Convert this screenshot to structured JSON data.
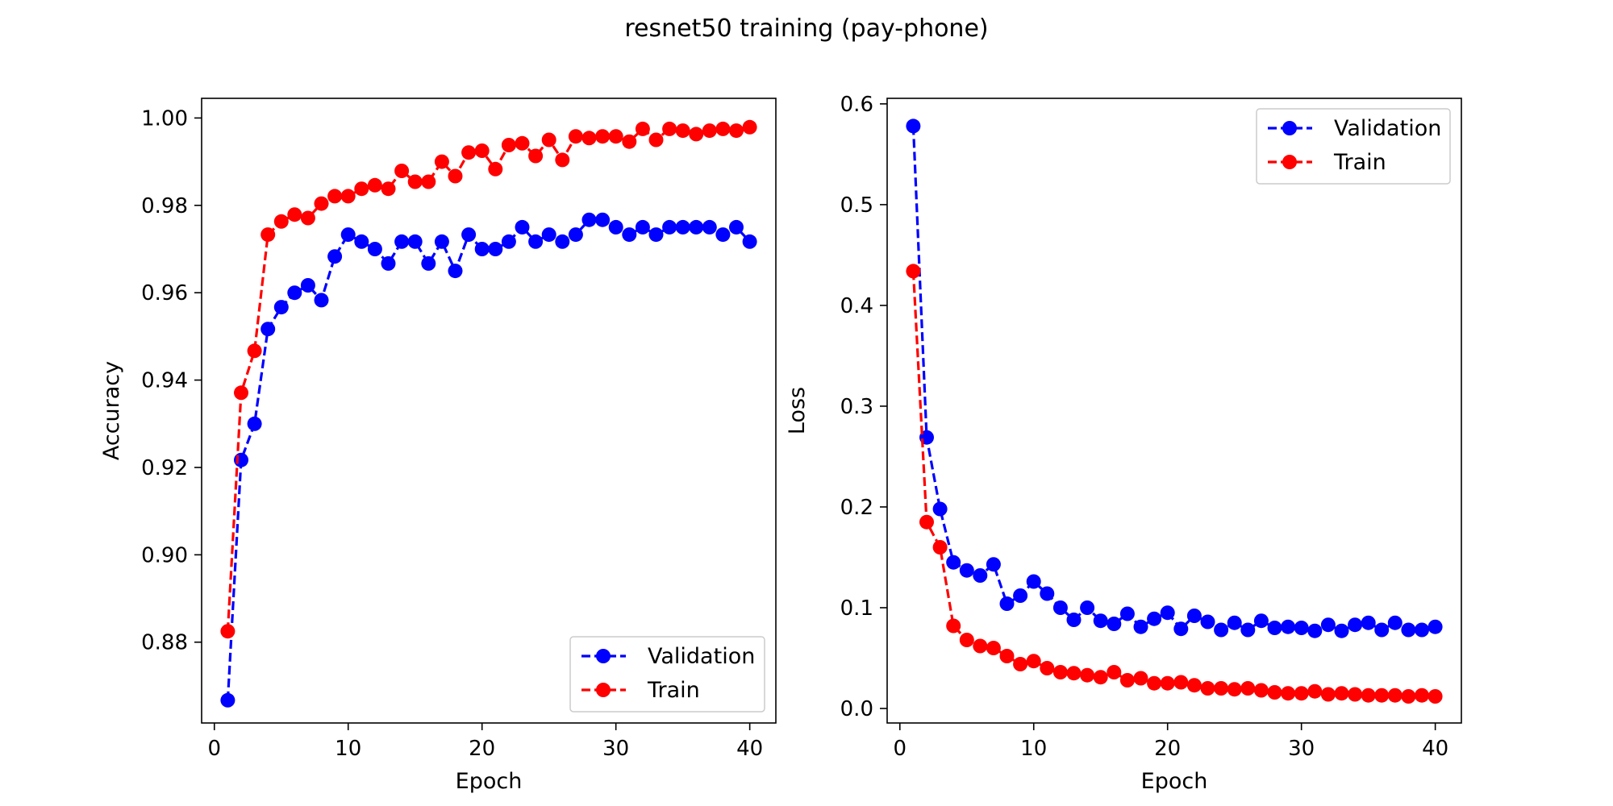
{
  "figure": {
    "title": "resnet50 training (pay-phone)"
  },
  "colors": {
    "validation": "#0000ff",
    "train": "#ff0000"
  },
  "chart_data": [
    {
      "type": "line",
      "id": "accuracy",
      "title": "",
      "xlabel": "Epoch",
      "ylabel": "Accuracy",
      "xlim": [
        -0.95,
        41.95
      ],
      "ylim": [
        0.8615,
        1.0045
      ],
      "xticks": [
        0,
        10,
        20,
        30,
        40
      ],
      "xtick_labels": [
        "0",
        "10",
        "20",
        "30",
        "40"
      ],
      "yticks": [
        0.88,
        0.9,
        0.92,
        0.94,
        0.96,
        0.98,
        1.0
      ],
      "ytick_labels": [
        "0.88",
        "0.90",
        "0.92",
        "0.94",
        "0.96",
        "0.98",
        "1.00"
      ],
      "grid": false,
      "legend": "lower-right",
      "x": [
        1,
        2,
        3,
        4,
        5,
        6,
        7,
        8,
        9,
        10,
        11,
        12,
        13,
        14,
        15,
        16,
        17,
        18,
        19,
        20,
        21,
        22,
        23,
        24,
        25,
        26,
        27,
        28,
        29,
        30,
        31,
        32,
        33,
        34,
        35,
        36,
        37,
        38,
        39,
        40
      ],
      "series": [
        {
          "name": "Validation",
          "color": "#0000ff",
          "values": [
            0.8667,
            0.9217,
            0.93,
            0.9517,
            0.9567,
            0.96,
            0.9617,
            0.9583,
            0.9683,
            0.9733,
            0.9717,
            0.97,
            0.9667,
            0.9717,
            0.9717,
            0.9667,
            0.9717,
            0.965,
            0.9733,
            0.97,
            0.97,
            0.9717,
            0.975,
            0.9717,
            0.9733,
            0.9717,
            0.9733,
            0.9767,
            0.9767,
            0.975,
            0.9733,
            0.975,
            0.9733,
            0.975,
            0.975,
            0.975,
            0.975,
            0.9733,
            0.975,
            0.9717
          ]
        },
        {
          "name": "Train",
          "color": "#ff0000",
          "values": [
            0.8825,
            0.9371,
            0.9467,
            0.9733,
            0.9763,
            0.9779,
            0.9771,
            0.9804,
            0.9821,
            0.9821,
            0.9838,
            0.9846,
            0.9838,
            0.9879,
            0.9854,
            0.9854,
            0.99,
            0.9867,
            0.9921,
            0.9925,
            0.9883,
            0.9938,
            0.9942,
            0.9913,
            0.995,
            0.9904,
            0.9958,
            0.9954,
            0.9958,
            0.9958,
            0.9946,
            0.9975,
            0.995,
            0.9975,
            0.9971,
            0.9963,
            0.9971,
            0.9975,
            0.9971,
            0.9979
          ]
        }
      ]
    },
    {
      "type": "line",
      "id": "loss",
      "title": "",
      "xlabel": "Epoch",
      "ylabel": "Loss",
      "xlim": [
        -0.95,
        41.95
      ],
      "ylim": [
        -0.0144,
        0.6055
      ],
      "xticks": [
        0,
        10,
        20,
        30,
        40
      ],
      "xtick_labels": [
        "0",
        "10",
        "20",
        "30",
        "40"
      ],
      "yticks": [
        0.0,
        0.1,
        0.2,
        0.3,
        0.4,
        0.5,
        0.6
      ],
      "ytick_labels": [
        "0.0",
        "0.1",
        "0.2",
        "0.3",
        "0.4",
        "0.5",
        "0.6"
      ],
      "grid": false,
      "legend": "upper-right",
      "x": [
        1,
        2,
        3,
        4,
        5,
        6,
        7,
        8,
        9,
        10,
        11,
        12,
        13,
        14,
        15,
        16,
        17,
        18,
        19,
        20,
        21,
        22,
        23,
        24,
        25,
        26,
        27,
        28,
        29,
        30,
        31,
        32,
        33,
        34,
        35,
        36,
        37,
        38,
        39,
        40
      ],
      "series": [
        {
          "name": "Validation",
          "color": "#0000ff",
          "values": [
            0.578,
            0.269,
            0.198,
            0.145,
            0.137,
            0.132,
            0.143,
            0.104,
            0.112,
            0.126,
            0.114,
            0.1,
            0.088,
            0.1,
            0.087,
            0.084,
            0.094,
            0.081,
            0.089,
            0.095,
            0.079,
            0.092,
            0.086,
            0.078,
            0.085,
            0.078,
            0.087,
            0.08,
            0.081,
            0.08,
            0.077,
            0.083,
            0.077,
            0.083,
            0.085,
            0.078,
            0.085,
            0.078,
            0.078,
            0.081
          ]
        },
        {
          "name": "Train",
          "color": "#ff0000",
          "values": [
            0.434,
            0.185,
            0.16,
            0.082,
            0.068,
            0.062,
            0.06,
            0.052,
            0.044,
            0.047,
            0.04,
            0.036,
            0.035,
            0.033,
            0.031,
            0.036,
            0.028,
            0.03,
            0.025,
            0.025,
            0.026,
            0.023,
            0.02,
            0.02,
            0.019,
            0.02,
            0.018,
            0.016,
            0.015,
            0.015,
            0.017,
            0.014,
            0.015,
            0.014,
            0.013,
            0.013,
            0.013,
            0.012,
            0.013,
            0.012
          ]
        }
      ]
    }
  ]
}
